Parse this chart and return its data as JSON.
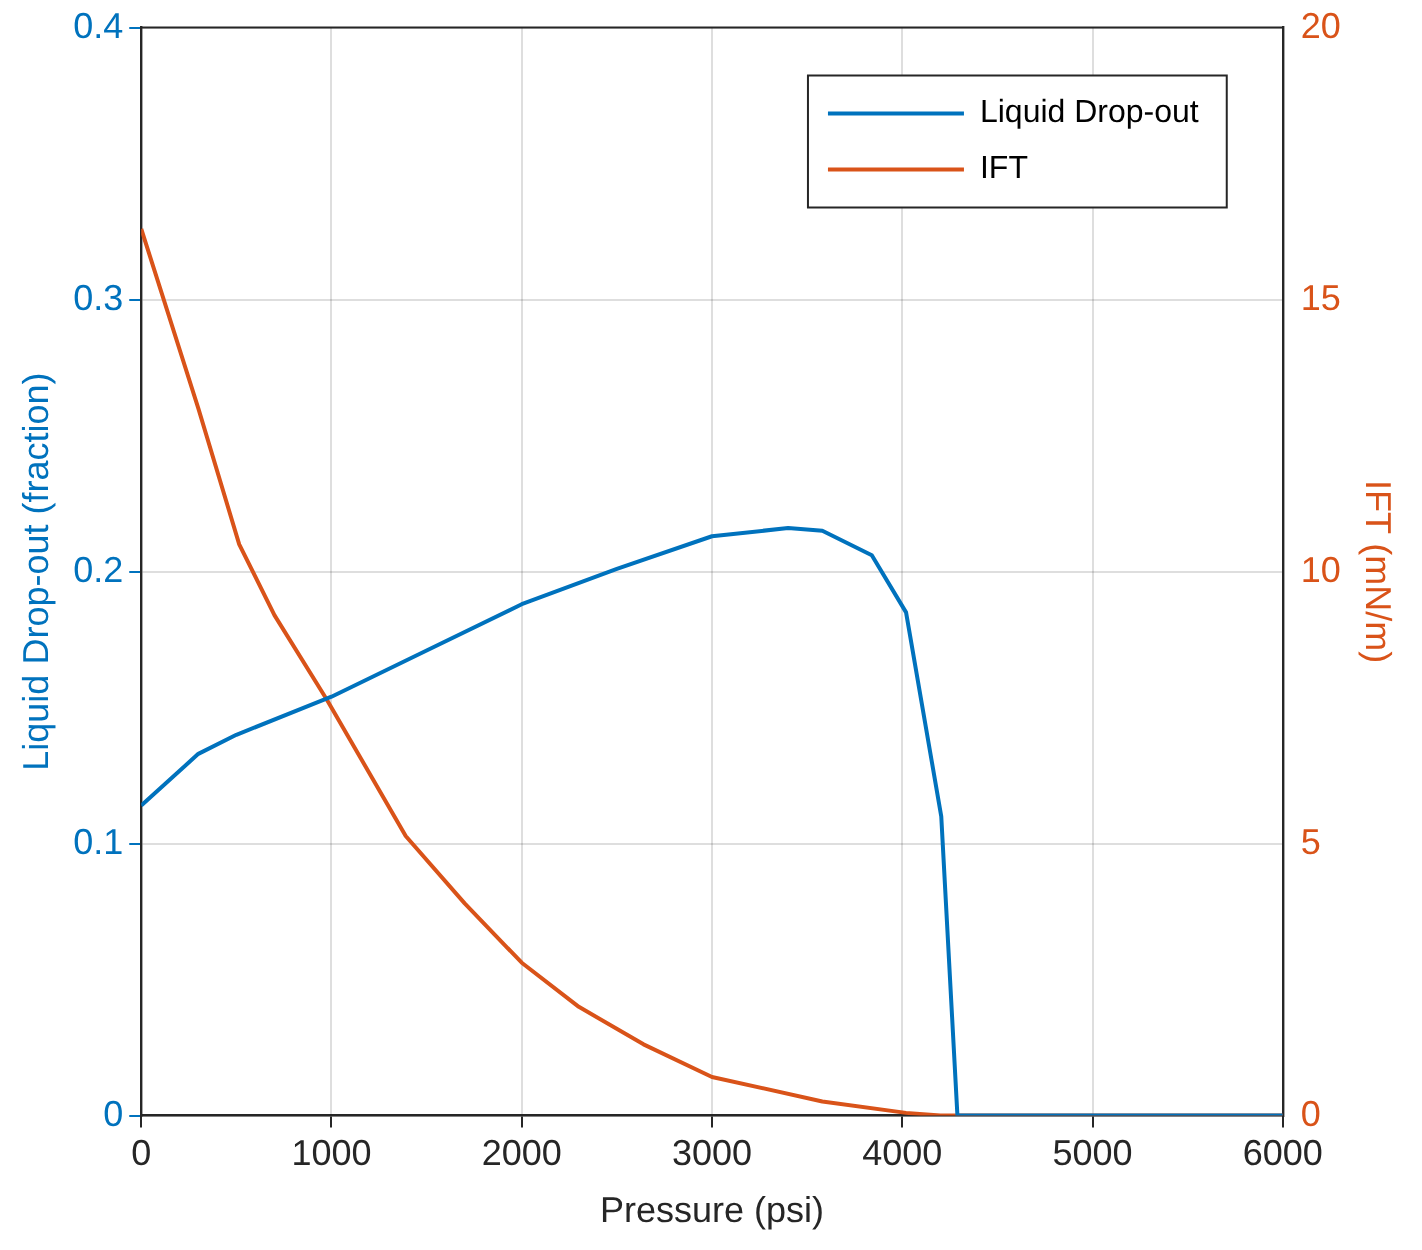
{
  "chart_data": {
    "type": "line",
    "xlabel": "Pressure (psi)",
    "ylabel": "Liquid Drop-out (fraction)",
    "y2label": "IFT (mN/m)",
    "xlim": [
      0,
      6000
    ],
    "xticks": [
      0,
      1000,
      2000,
      3000,
      4000,
      5000,
      6000
    ],
    "ylim": [
      0,
      0.4
    ],
    "yticks": [
      0,
      0.1,
      0.2,
      0.3,
      0.4
    ],
    "y2lim": [
      0,
      20
    ],
    "y2ticks": [
      0,
      5,
      10,
      15,
      20
    ],
    "grid": true,
    "legend": "top right",
    "marker": "none",
    "line_style": "solid",
    "series": [
      {
        "name": "Liquid Drop-out",
        "color": "#0072bd",
        "x": [
          0,
          300,
          500,
          1000,
          1500,
          2000,
          2500,
          3000,
          3400,
          3580,
          3840,
          4020,
          4205,
          4290,
          5000,
          6000
        ],
        "values": [
          0.114,
          0.133,
          0.14,
          0.154,
          0.171,
          0.188,
          0.201,
          0.213,
          0.216,
          0.215,
          0.206,
          0.185,
          0.11,
          0,
          0,
          0
        ]
      },
      {
        "name": "IFT",
        "color": "#d95319",
        "axis": "y2",
        "x": [
          0,
          300,
          515,
          700,
          975,
          1390,
          1700,
          2000,
          2300,
          2640,
          3000,
          3580,
          4020,
          4200,
          5000,
          6000
        ],
        "values": [
          16.3,
          13.0,
          10.5,
          9.2,
          7.65,
          5.14,
          3.9,
          2.81,
          2.0,
          1.31,
          0.71,
          0.26,
          0.05,
          0,
          0,
          0
        ]
      }
    ]
  }
}
